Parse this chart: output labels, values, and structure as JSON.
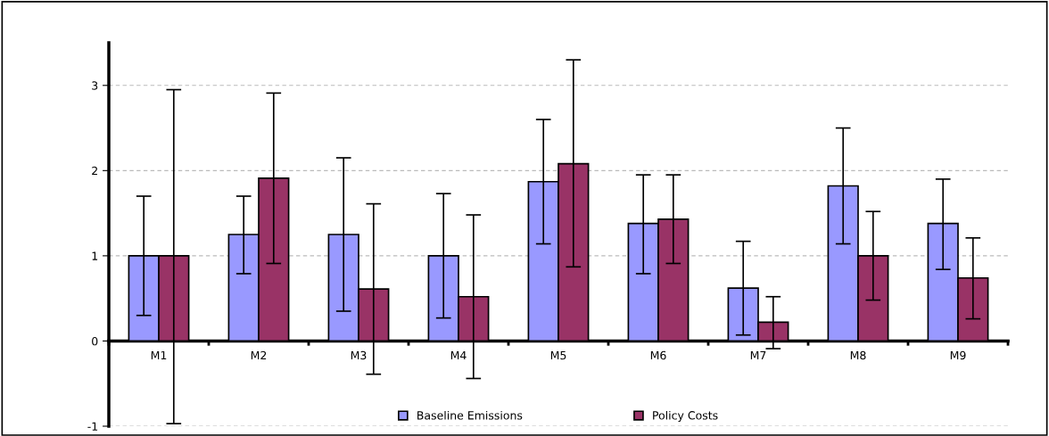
{
  "chart_data": {
    "type": "bar",
    "categories": [
      "M1",
      "M2",
      "M3",
      "M4",
      "M5",
      "M6",
      "M7",
      "M8",
      "M9"
    ],
    "series": [
      {
        "name": "Baseline Emissions",
        "color": "#9999ff",
        "values": [
          1.0,
          1.25,
          1.25,
          1.0,
          1.87,
          1.38,
          0.62,
          1.82,
          1.38
        ],
        "errors": [
          [
            0.3,
            1.7
          ],
          [
            0.79,
            1.7
          ],
          [
            0.35,
            2.15
          ],
          [
            0.27,
            1.73
          ],
          [
            1.14,
            2.6
          ],
          [
            0.79,
            1.95
          ],
          [
            0.07,
            1.17
          ],
          [
            1.14,
            2.5
          ],
          [
            0.84,
            1.9
          ]
        ]
      },
      {
        "name": "Policy Costs",
        "color": "#993366",
        "values": [
          1.0,
          1.91,
          0.61,
          0.52,
          2.08,
          1.43,
          0.22,
          1.0,
          0.74
        ],
        "errors": [
          [
            -0.97,
            2.95
          ],
          [
            0.91,
            2.91
          ],
          [
            -0.39,
            1.61
          ],
          [
            -0.44,
            1.48
          ],
          [
            0.87,
            3.3
          ],
          [
            0.91,
            1.95
          ],
          [
            -0.09,
            0.52
          ],
          [
            0.48,
            1.52
          ],
          [
            0.26,
            1.21
          ]
        ]
      }
    ],
    "ylim": [
      -1,
      3.5
    ],
    "yticks": [
      -1,
      0,
      1,
      2,
      3
    ],
    "grid": "y",
    "legend": "bottom"
  }
}
